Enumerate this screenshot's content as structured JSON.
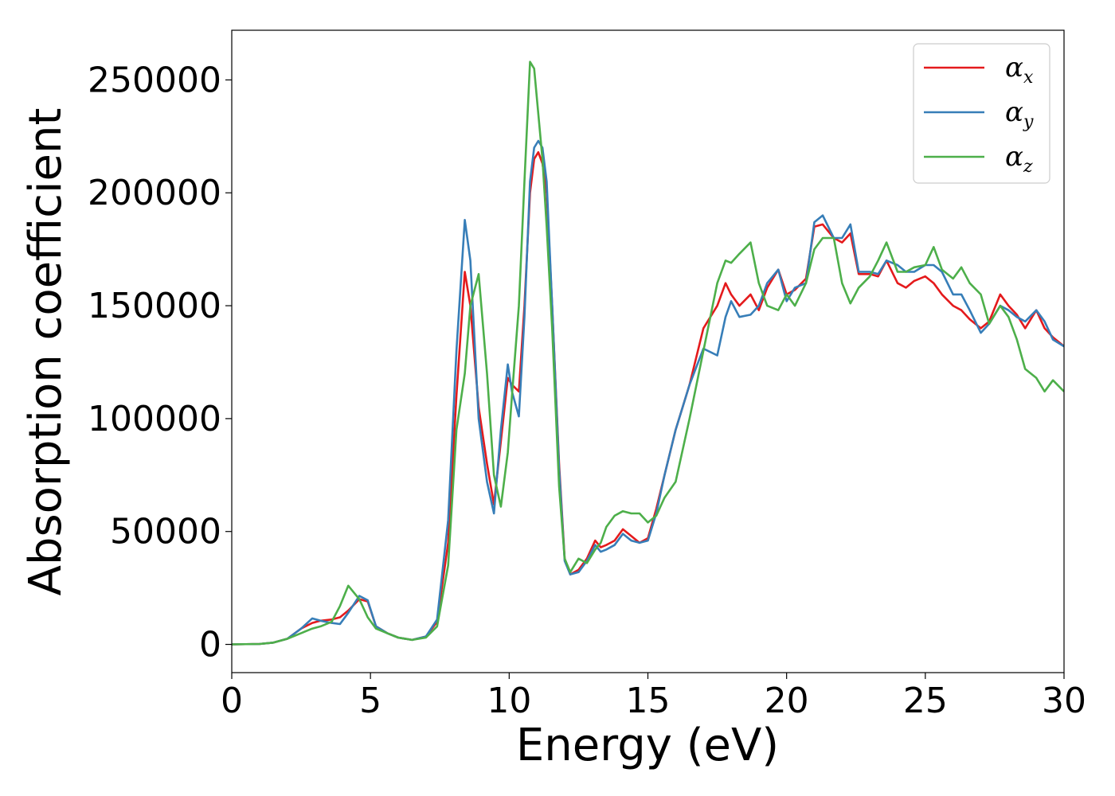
{
  "chart_data": {
    "type": "line",
    "xlabel": "Energy (eV)",
    "ylabel": "Absorption coefficient",
    "xlim": [
      0,
      30
    ],
    "ylim": [
      -12500,
      272000
    ],
    "xticks": [
      0,
      5,
      10,
      15,
      20,
      25,
      30
    ],
    "yticks": [
      0,
      50000,
      100000,
      150000,
      200000,
      250000
    ],
    "grid": false,
    "legend_position": "top-right",
    "series": [
      {
        "name": "α_x",
        "label_base": "α",
        "label_sub": "x",
        "color": "#e41a1c",
        "x": [
          0,
          1,
          1.5,
          2,
          2.5,
          2.9,
          3.2,
          3.6,
          3.9,
          4.2,
          4.6,
          4.9,
          5.2,
          5.6,
          6,
          6.5,
          7,
          7.4,
          7.8,
          8.1,
          8.4,
          8.6,
          8.9,
          9.2,
          9.45,
          9.7,
          9.95,
          10.1,
          10.35,
          10.55,
          10.75,
          10.9,
          11.05,
          11.2,
          11.35,
          11.55,
          11.8,
          12,
          12.2,
          12.5,
          12.8,
          13.1,
          13.3,
          13.5,
          13.8,
          14.1,
          14.4,
          14.7,
          15,
          15.3,
          15.6,
          16,
          16.5,
          17,
          17.5,
          17.8,
          18,
          18.3,
          18.7,
          19,
          19.3,
          19.7,
          20,
          20.3,
          20.7,
          21,
          21.3,
          21.7,
          22,
          22.3,
          22.6,
          23,
          23.3,
          23.6,
          24,
          24.3,
          24.6,
          25,
          25.3,
          25.6,
          26,
          26.3,
          26.6,
          27,
          27.3,
          27.7,
          28,
          28.3,
          28.6,
          29,
          29.3,
          29.6,
          30
        ],
        "y": [
          0,
          200,
          800,
          2500,
          7000,
          9500,
          10500,
          11000,
          12000,
          15000,
          20000,
          19000,
          8000,
          5000,
          3000,
          2000,
          3500,
          10000,
          45000,
          110000,
          165000,
          150000,
          105000,
          80000,
          62000,
          90000,
          118000,
          115000,
          112000,
          150000,
          200000,
          215000,
          218000,
          213000,
          200000,
          150000,
          80000,
          38000,
          31000,
          33000,
          38000,
          46000,
          43000,
          44000,
          46000,
          51000,
          48000,
          45000,
          47000,
          60000,
          75000,
          95000,
          115000,
          140000,
          150000,
          160000,
          155000,
          150000,
          155000,
          148000,
          158000,
          166000,
          155000,
          157000,
          162000,
          185000,
          186000,
          180000,
          178000,
          182000,
          164000,
          164000,
          163000,
          170000,
          160000,
          158000,
          161000,
          163000,
          160000,
          155000,
          150000,
          148000,
          144000,
          140000,
          143000,
          155000,
          150000,
          146000,
          140000,
          148000,
          140000,
          136000,
          132000
        ]
      },
      {
        "name": "α_y",
        "label_base": "α",
        "label_sub": "y",
        "color": "#377eb8",
        "x": [
          0,
          1,
          1.5,
          2,
          2.5,
          2.9,
          3.2,
          3.6,
          3.9,
          4.2,
          4.6,
          4.9,
          5.2,
          5.6,
          6,
          6.5,
          7,
          7.4,
          7.8,
          8.1,
          8.4,
          8.6,
          8.9,
          9.2,
          9.45,
          9.7,
          9.95,
          10.1,
          10.35,
          10.55,
          10.75,
          10.9,
          11.05,
          11.2,
          11.35,
          11.55,
          11.8,
          12,
          12.2,
          12.5,
          12.8,
          13.1,
          13.3,
          13.5,
          13.8,
          14.1,
          14.4,
          14.7,
          15,
          15.3,
          15.6,
          16,
          16.5,
          17,
          17.5,
          17.8,
          18,
          18.3,
          18.7,
          19,
          19.3,
          19.7,
          20,
          20.3,
          20.7,
          21,
          21.3,
          21.7,
          22,
          22.3,
          22.6,
          23,
          23.3,
          23.6,
          24,
          24.3,
          24.6,
          25,
          25.3,
          25.6,
          26,
          26.3,
          26.6,
          27,
          27.3,
          27.7,
          28,
          28.3,
          28.6,
          29,
          29.3,
          29.6,
          30
        ],
        "y": [
          0,
          200,
          800,
          2500,
          7000,
          11500,
          10500,
          9500,
          9000,
          14000,
          21500,
          19500,
          8000,
          5000,
          3000,
          2000,
          3500,
          11000,
          55000,
          130000,
          188000,
          170000,
          100000,
          72000,
          58000,
          95000,
          124000,
          112000,
          101000,
          145000,
          205000,
          220000,
          223000,
          220000,
          205000,
          150000,
          78000,
          37000,
          31000,
          32000,
          37000,
          44000,
          41000,
          42000,
          44000,
          49000,
          46000,
          45000,
          46000,
          58000,
          75000,
          95000,
          115000,
          131000,
          128000,
          145000,
          152000,
          145000,
          146000,
          150000,
          160000,
          166000,
          152000,
          158000,
          160000,
          187000,
          190000,
          180000,
          180000,
          186000,
          165000,
          165000,
          164000,
          170000,
          168000,
          165000,
          165000,
          168000,
          168000,
          165000,
          155000,
          155000,
          148000,
          138000,
          142000,
          150000,
          148000,
          145000,
          143000,
          148000,
          143000,
          135000,
          132000
        ]
      },
      {
        "name": "α_z",
        "label_base": "α",
        "label_sub": "z",
        "color": "#4daf4a",
        "x": [
          0,
          1,
          1.5,
          2,
          2.5,
          2.9,
          3.2,
          3.6,
          3.9,
          4.2,
          4.6,
          4.9,
          5.2,
          5.6,
          6,
          6.5,
          7,
          7.4,
          7.8,
          8.1,
          8.4,
          8.6,
          8.9,
          9.2,
          9.45,
          9.7,
          9.95,
          10.1,
          10.35,
          10.55,
          10.75,
          10.9,
          11.05,
          11.2,
          11.35,
          11.55,
          11.8,
          12,
          12.2,
          12.5,
          12.8,
          13.1,
          13.3,
          13.5,
          13.8,
          14.1,
          14.4,
          14.7,
          15,
          15.3,
          15.6,
          16,
          16.5,
          17,
          17.5,
          17.8,
          18,
          18.3,
          18.7,
          19,
          19.3,
          19.7,
          20,
          20.3,
          20.7,
          21,
          21.3,
          21.7,
          22,
          22.3,
          22.6,
          23,
          23.3,
          23.6,
          24,
          24.3,
          24.6,
          25,
          25.3,
          25.6,
          26,
          26.3,
          26.6,
          27,
          27.3,
          27.7,
          28,
          28.3,
          28.6,
          29,
          29.3,
          29.6,
          30
        ],
        "y": [
          0,
          200,
          800,
          2500,
          5000,
          7000,
          8000,
          10000,
          17000,
          26000,
          20000,
          12000,
          7000,
          5000,
          3000,
          2000,
          3000,
          8000,
          35000,
          95000,
          120000,
          150000,
          164000,
          120000,
          75000,
          61000,
          85000,
          110000,
          150000,
          205000,
          258000,
          255000,
          235000,
          215000,
          185000,
          140000,
          70000,
          38000,
          32000,
          38000,
          36000,
          42000,
          45000,
          52000,
          57000,
          59000,
          58000,
          58000,
          54000,
          57000,
          65000,
          72000,
          100000,
          130000,
          160000,
          170000,
          169000,
          173000,
          178000,
          160000,
          150000,
          148000,
          155000,
          150000,
          160000,
          175000,
          180000,
          180000,
          160000,
          151000,
          158000,
          163000,
          170000,
          178000,
          165000,
          165000,
          167000,
          168000,
          176000,
          166000,
          162000,
          167000,
          160000,
          155000,
          142000,
          150000,
          145000,
          135000,
          122000,
          118000,
          112000,
          117000,
          112000
        ]
      }
    ]
  }
}
